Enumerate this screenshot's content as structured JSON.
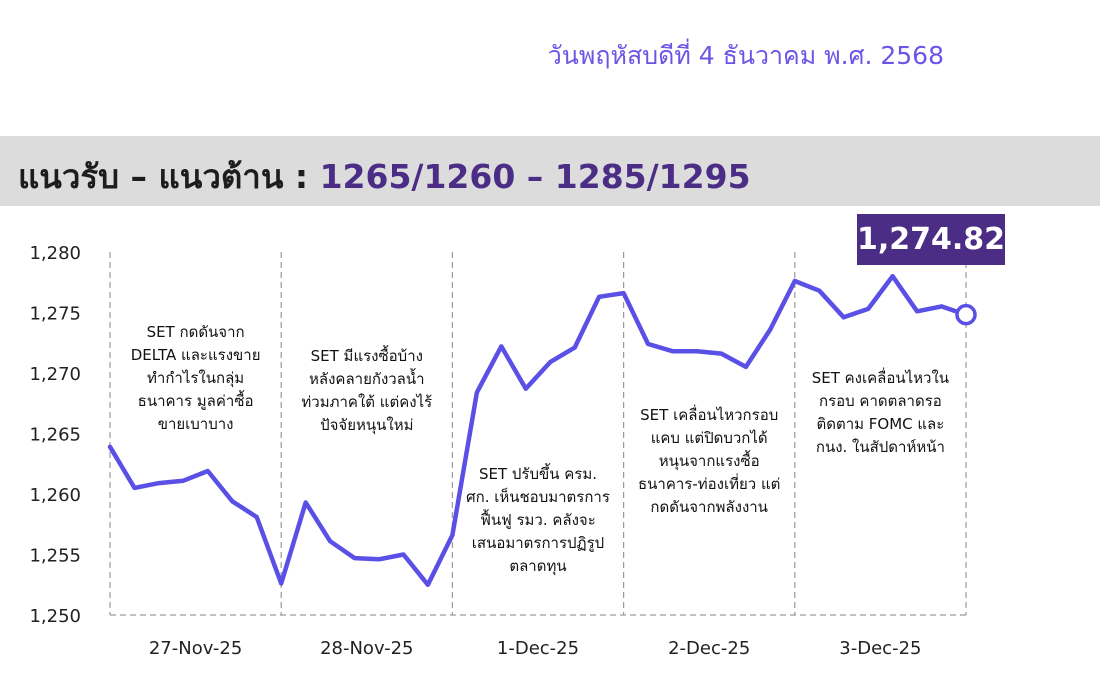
{
  "header": {
    "date_text": "วันพฤหัสบดีที่ 4 ธันวาคม พ.ศ. 2568",
    "title_label": "แนวรับ – แนวต้าน : ",
    "title_values": "1265/1260 – 1285/1295"
  },
  "last_value_label": "1,274.82",
  "colors": {
    "line": "#5a50e6",
    "title_bar": "#dcdcdc",
    "badge": "#4b2d86",
    "date_text": "#6b55e6"
  },
  "chart_data": {
    "type": "line",
    "title": "",
    "xlabel": "",
    "ylabel": "",
    "ylim": [
      1250,
      1280
    ],
    "y_ticks": [
      "1,250",
      "1,255",
      "1,260",
      "1,265",
      "1,270",
      "1,275",
      "1,280"
    ],
    "y_tick_values": [
      1250,
      1255,
      1260,
      1265,
      1270,
      1275,
      1280
    ],
    "days": [
      "27-Nov-25",
      "28-Nov-25",
      "1-Dec-25",
      "2-Dec-25",
      "3-Dec-25"
    ],
    "grid": false,
    "series": [
      {
        "values": [
          1263.9,
          1260.5,
          1260.9,
          1261.1,
          1261.9,
          1259.4,
          1258.1,
          1252.6,
          1259.3,
          1256.1,
          1254.7,
          1254.6,
          1255.0,
          1252.5,
          1256.6,
          1268.4,
          1272.2,
          1268.7,
          1270.9,
          1272.1,
          1276.3,
          1276.6,
          1272.4,
          1271.8,
          1271.8,
          1271.6,
          1270.5,
          1273.6,
          1277.6,
          1276.8,
          1274.6,
          1275.3,
          1278.0,
          1275.1,
          1275.5,
          1274.82
        ]
      }
    ],
    "annotations": [
      [
        "SET กดดันจาก",
        "DELTA และแรงขาย",
        "ทำกำไรในกลุ่ม",
        "ธนาคาร มูลค่าซื้อ",
        "ขายเบาบาง"
      ],
      [
        "SET มีแรงซื้อบ้าง",
        "หลังคลายกังวลน้ำ",
        "ท่วมภาคใต้ แต่คงไร้",
        "ปัจจัยหนุนใหม่"
      ],
      [
        "SET ปรับขึ้น ครม.",
        "ศก. เห็นชอบมาตรการ",
        "ฟื้นฟู รมว. คลังจะ",
        "เสนอมาตรการปฏิรูป",
        "ตลาดทุน"
      ],
      [
        "SET เคลื่อนไหวกรอบ",
        "แคบ แต่ปิดบวกได้",
        "หนุนจากแรงซื้อ",
        "ธนาคาร-ท่องเที่ยว แต่",
        "กดดันจากพลังงาน"
      ],
      [
        "SET คงเคลื่อนไหวใน",
        "กรอบ คาดตลาดรอ",
        "ติดตาม FOMC และ",
        "กนง. ในสัปดาห์หน้า"
      ]
    ]
  }
}
